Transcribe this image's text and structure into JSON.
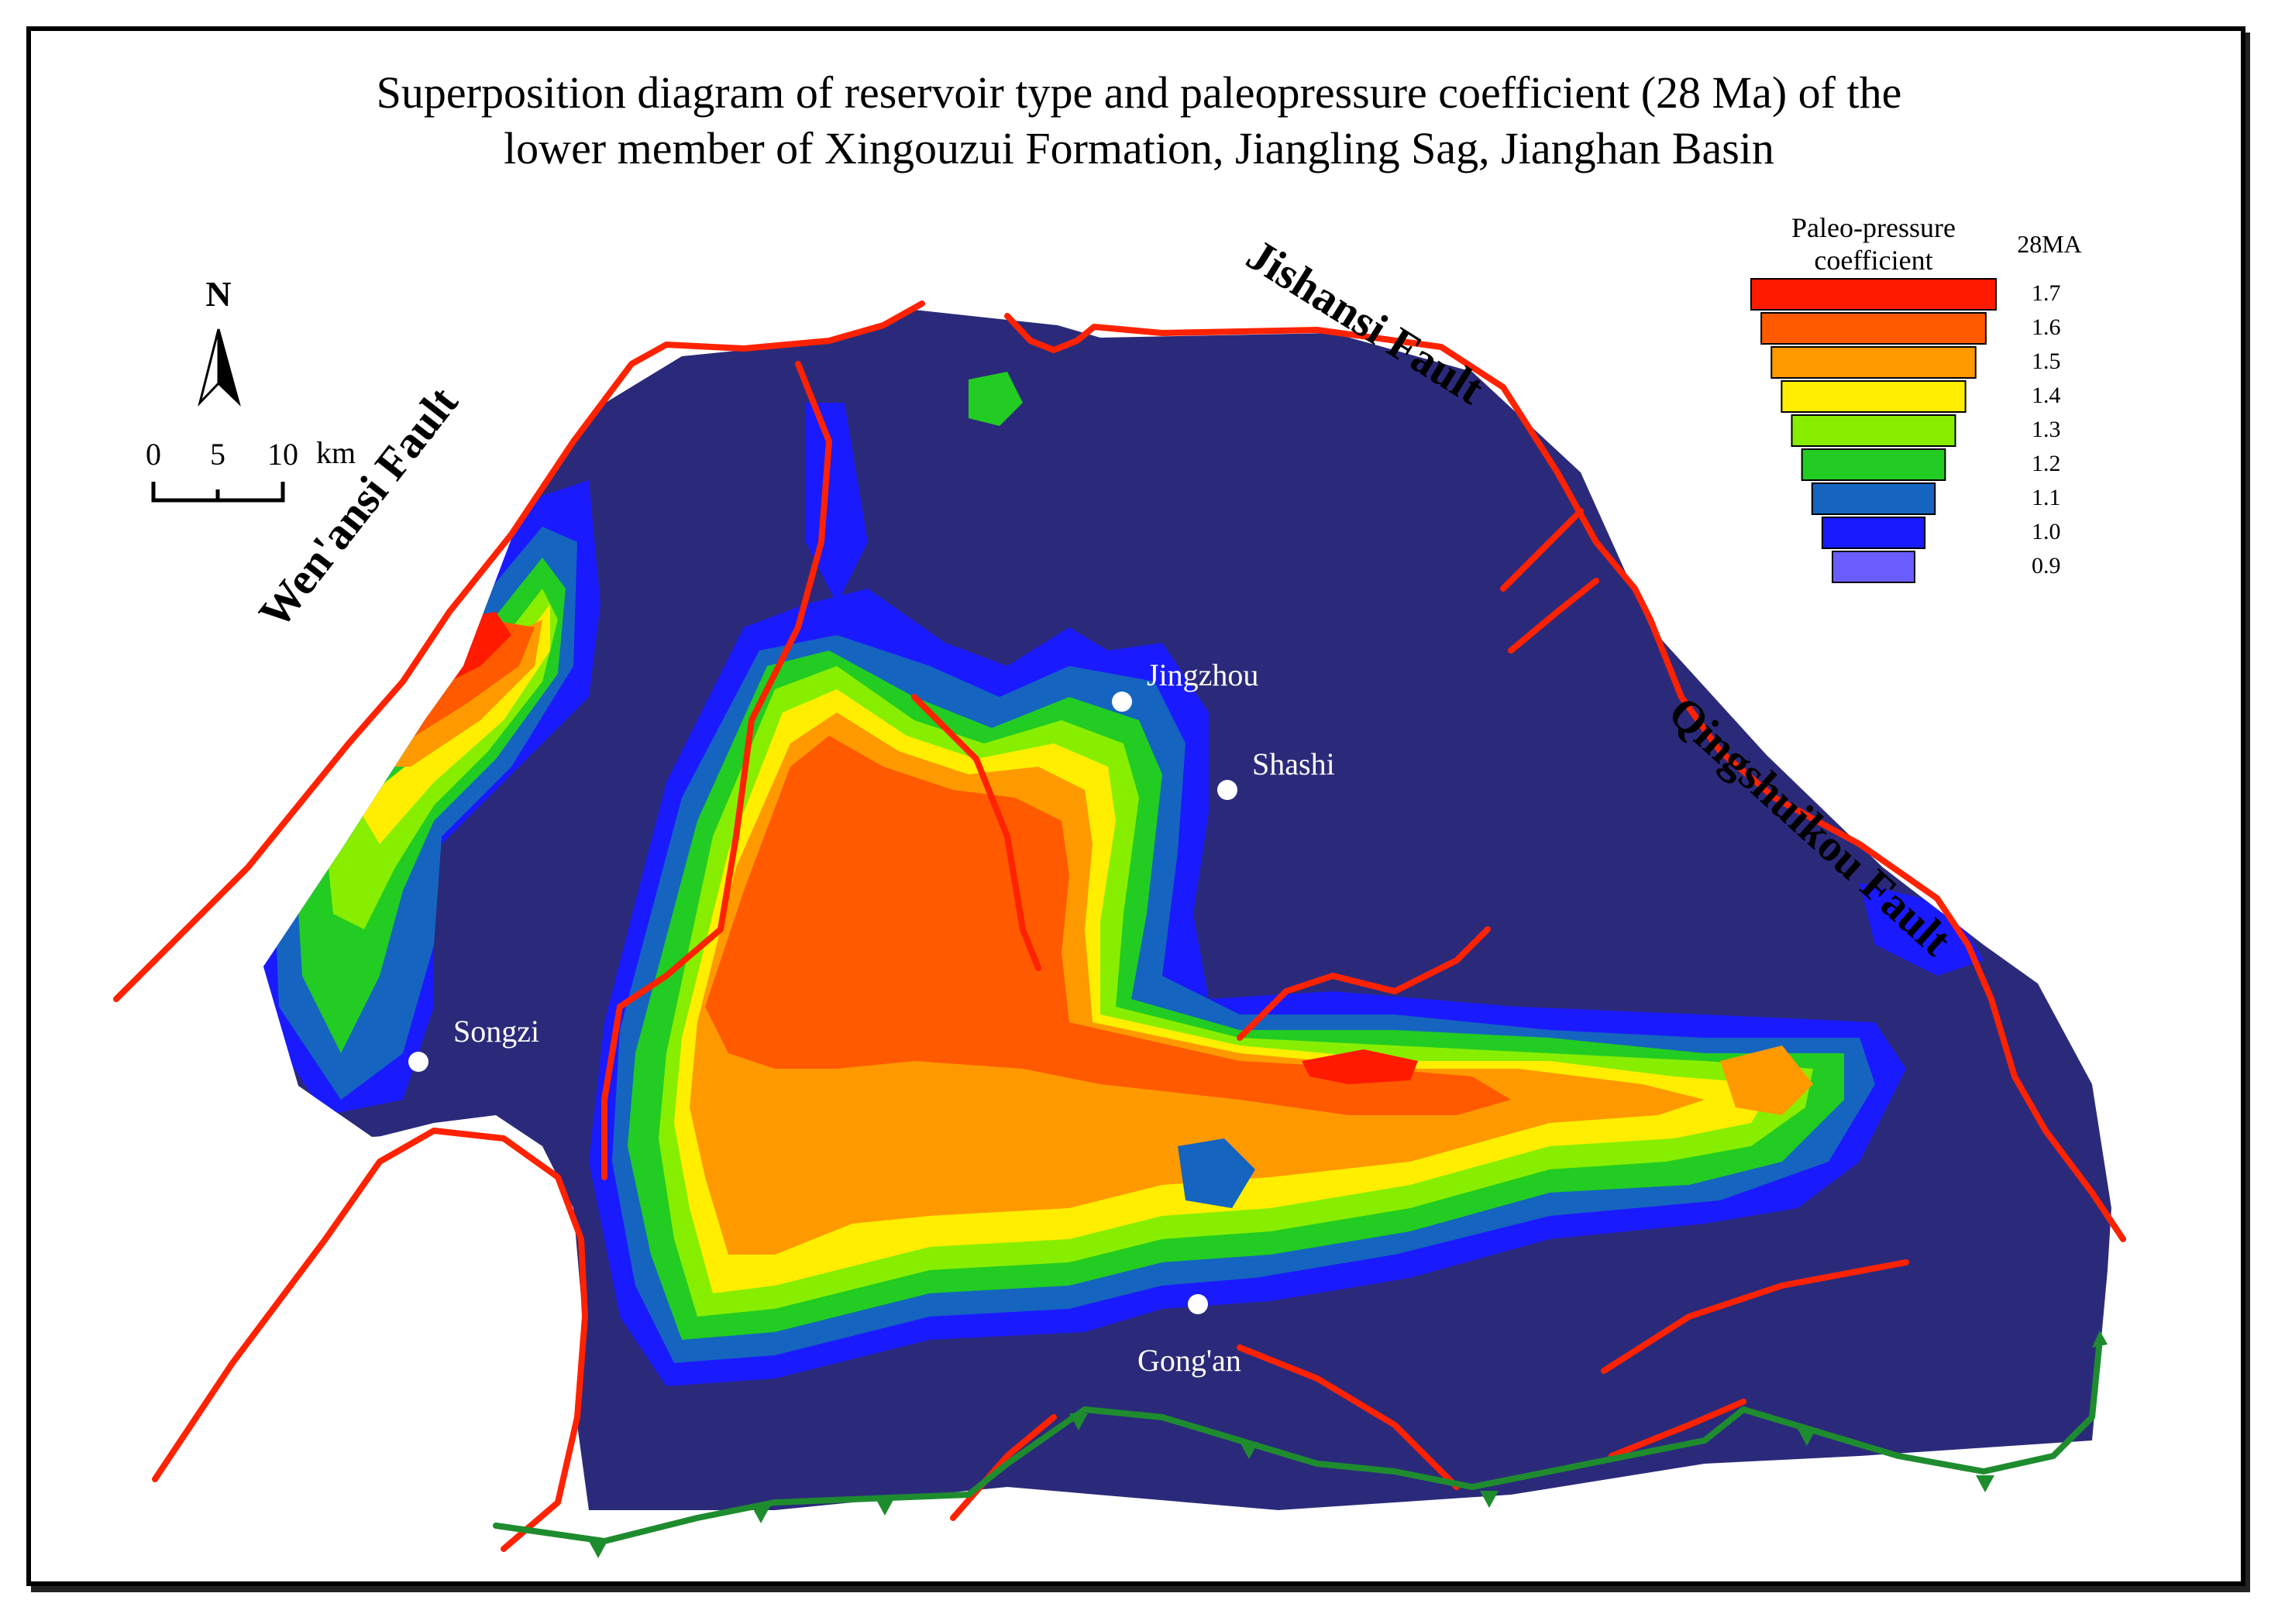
{
  "title": {
    "line1": "Superposition diagram of reservoir type and paleopressure coefficient (28 Ma) of the",
    "line2": "lower member of Xingouzui Formation, Jiangling Sag, Jianghan Basin"
  },
  "north_arrow": {
    "label": "N",
    "icon": "north-arrow-icon"
  },
  "scale_bar": {
    "ticks": [
      "0",
      "5",
      "10"
    ],
    "unit": "km"
  },
  "faults": {
    "wenansi": "Wen'ansi Fault",
    "jishansi": "Jishansi Fault",
    "qingshuikou": "Qingshuikou Fault"
  },
  "cities": {
    "jingzhou": "Jingzhou",
    "shashi": "Shashi",
    "songzi": "Songzi",
    "gongan": "Gong'an"
  },
  "legend": {
    "title_line1": "Paleo-pressure",
    "title_line2": "coefficient",
    "time_label": "28MA",
    "classes": [
      {
        "value": "1.7",
        "color": "#ff1a00"
      },
      {
        "value": "1.6",
        "color": "#ff5a00"
      },
      {
        "value": "1.5",
        "color": "#ff9900"
      },
      {
        "value": "1.4",
        "color": "#ffee00"
      },
      {
        "value": "1.3",
        "color": "#88ee00"
      },
      {
        "value": "1.2",
        "color": "#22cc22"
      },
      {
        "value": "1.1",
        "color": "#1565c0"
      },
      {
        "value": "1.0",
        "color": "#1a1aff"
      },
      {
        "value": "0.9",
        "color": "#6b5cff"
      }
    ]
  },
  "colors": {
    "background_basin": "#2b2a7a",
    "fault_line": "#ff2200",
    "thrust_line": "#1e8c2e",
    "city_marker": "#ffffff"
  }
}
